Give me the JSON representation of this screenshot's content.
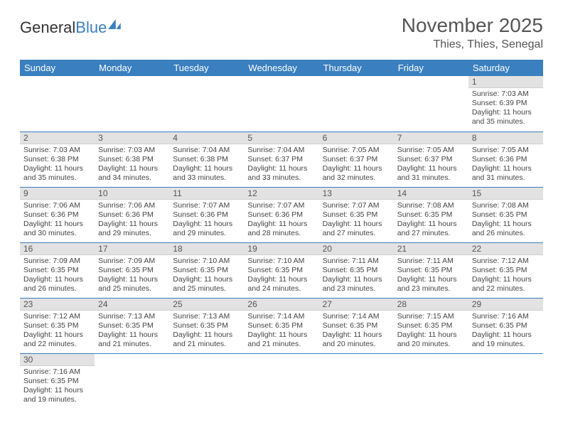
{
  "logo": {
    "text1": "General",
    "text2": "Blue"
  },
  "title": "November 2025",
  "location": "Thies, Thies, Senegal",
  "colors": {
    "header_bg": "#3a7fbf",
    "header_text": "#ffffff",
    "daynum_bg": "#e2e2e2",
    "cell_border": "#3a7fbf",
    "text": "#444444",
    "title_text": "#555555"
  },
  "weekdays": [
    "Sunday",
    "Monday",
    "Tuesday",
    "Wednesday",
    "Thursday",
    "Friday",
    "Saturday"
  ],
  "weeks": [
    [
      null,
      null,
      null,
      null,
      null,
      null,
      {
        "n": "1",
        "sr": "7:03 AM",
        "ss": "6:39 PM",
        "dl": "11 hours and 35 minutes."
      }
    ],
    [
      {
        "n": "2",
        "sr": "7:03 AM",
        "ss": "6:38 PM",
        "dl": "11 hours and 35 minutes."
      },
      {
        "n": "3",
        "sr": "7:03 AM",
        "ss": "6:38 PM",
        "dl": "11 hours and 34 minutes."
      },
      {
        "n": "4",
        "sr": "7:04 AM",
        "ss": "6:38 PM",
        "dl": "11 hours and 33 minutes."
      },
      {
        "n": "5",
        "sr": "7:04 AM",
        "ss": "6:37 PM",
        "dl": "11 hours and 33 minutes."
      },
      {
        "n": "6",
        "sr": "7:05 AM",
        "ss": "6:37 PM",
        "dl": "11 hours and 32 minutes."
      },
      {
        "n": "7",
        "sr": "7:05 AM",
        "ss": "6:37 PM",
        "dl": "11 hours and 31 minutes."
      },
      {
        "n": "8",
        "sr": "7:05 AM",
        "ss": "6:36 PM",
        "dl": "11 hours and 31 minutes."
      }
    ],
    [
      {
        "n": "9",
        "sr": "7:06 AM",
        "ss": "6:36 PM",
        "dl": "11 hours and 30 minutes."
      },
      {
        "n": "10",
        "sr": "7:06 AM",
        "ss": "6:36 PM",
        "dl": "11 hours and 29 minutes."
      },
      {
        "n": "11",
        "sr": "7:07 AM",
        "ss": "6:36 PM",
        "dl": "11 hours and 29 minutes."
      },
      {
        "n": "12",
        "sr": "7:07 AM",
        "ss": "6:36 PM",
        "dl": "11 hours and 28 minutes."
      },
      {
        "n": "13",
        "sr": "7:07 AM",
        "ss": "6:35 PM",
        "dl": "11 hours and 27 minutes."
      },
      {
        "n": "14",
        "sr": "7:08 AM",
        "ss": "6:35 PM",
        "dl": "11 hours and 27 minutes."
      },
      {
        "n": "15",
        "sr": "7:08 AM",
        "ss": "6:35 PM",
        "dl": "11 hours and 26 minutes."
      }
    ],
    [
      {
        "n": "16",
        "sr": "7:09 AM",
        "ss": "6:35 PM",
        "dl": "11 hours and 26 minutes."
      },
      {
        "n": "17",
        "sr": "7:09 AM",
        "ss": "6:35 PM",
        "dl": "11 hours and 25 minutes."
      },
      {
        "n": "18",
        "sr": "7:10 AM",
        "ss": "6:35 PM",
        "dl": "11 hours and 25 minutes."
      },
      {
        "n": "19",
        "sr": "7:10 AM",
        "ss": "6:35 PM",
        "dl": "11 hours and 24 minutes."
      },
      {
        "n": "20",
        "sr": "7:11 AM",
        "ss": "6:35 PM",
        "dl": "11 hours and 23 minutes."
      },
      {
        "n": "21",
        "sr": "7:11 AM",
        "ss": "6:35 PM",
        "dl": "11 hours and 23 minutes."
      },
      {
        "n": "22",
        "sr": "7:12 AM",
        "ss": "6:35 PM",
        "dl": "11 hours and 22 minutes."
      }
    ],
    [
      {
        "n": "23",
        "sr": "7:12 AM",
        "ss": "6:35 PM",
        "dl": "11 hours and 22 minutes."
      },
      {
        "n": "24",
        "sr": "7:13 AM",
        "ss": "6:35 PM",
        "dl": "11 hours and 21 minutes."
      },
      {
        "n": "25",
        "sr": "7:13 AM",
        "ss": "6:35 PM",
        "dl": "11 hours and 21 minutes."
      },
      {
        "n": "26",
        "sr": "7:14 AM",
        "ss": "6:35 PM",
        "dl": "11 hours and 21 minutes."
      },
      {
        "n": "27",
        "sr": "7:14 AM",
        "ss": "6:35 PM",
        "dl": "11 hours and 20 minutes."
      },
      {
        "n": "28",
        "sr": "7:15 AM",
        "ss": "6:35 PM",
        "dl": "11 hours and 20 minutes."
      },
      {
        "n": "29",
        "sr": "7:16 AM",
        "ss": "6:35 PM",
        "dl": "11 hours and 19 minutes."
      }
    ],
    [
      {
        "n": "30",
        "sr": "7:16 AM",
        "ss": "6:35 PM",
        "dl": "11 hours and 19 minutes."
      },
      null,
      null,
      null,
      null,
      null,
      null
    ]
  ],
  "labels": {
    "sunrise": "Sunrise:",
    "sunset": "Sunset:",
    "daylight": "Daylight:"
  }
}
